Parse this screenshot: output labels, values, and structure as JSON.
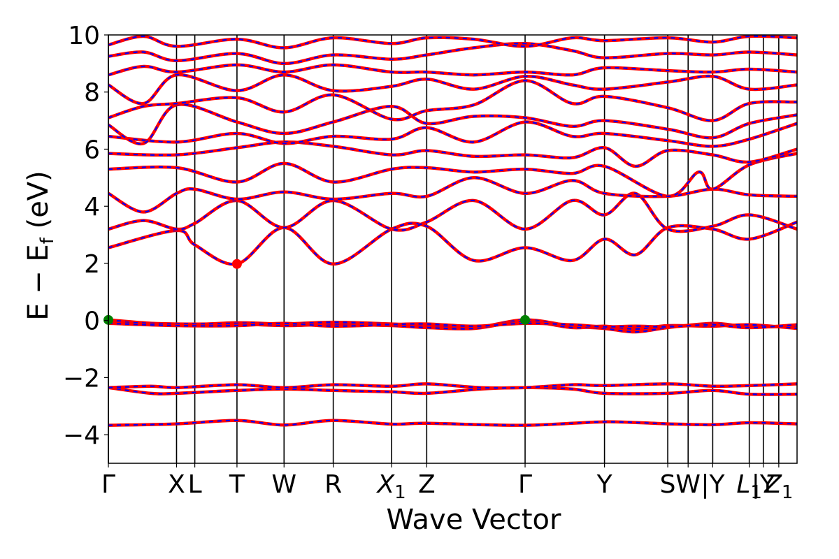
{
  "chart_data": {
    "type": "line",
    "xlabel": "Wave Vector",
    "ylabel_parts": {
      "main": "E − E",
      "sub": "f",
      "unit": " (eV)"
    },
    "ylim": [
      -5,
      10
    ],
    "yticks": [
      {
        "value": 10,
        "label": "10"
      },
      {
        "value": 8,
        "label": "8"
      },
      {
        "value": 6,
        "label": "6"
      },
      {
        "value": 4,
        "label": "4"
      },
      {
        "value": 2,
        "label": "2"
      },
      {
        "value": 0,
        "label": "0"
      },
      {
        "value": -2,
        "label": "−2"
      },
      {
        "value": -4,
        "label": "−4"
      }
    ],
    "xlim": [
      0,
      9.8
    ],
    "kpoints": [
      {
        "label": "Γ",
        "x": 0.0
      },
      {
        "label": "X",
        "x": 0.97
      },
      {
        "label": "L",
        "x": 1.23
      },
      {
        "label": "T",
        "x": 1.83
      },
      {
        "label": "W",
        "x": 2.5
      },
      {
        "label": "R",
        "x": 3.2
      },
      {
        "label": "X",
        "sub": "1",
        "x": 4.03
      },
      {
        "label": "Z",
        "x": 4.53
      },
      {
        "label": "Γ",
        "x": 5.93
      },
      {
        "label": "Y",
        "x": 7.06
      },
      {
        "label": "S",
        "x": 7.96
      },
      {
        "label": "W",
        "x": 8.25
      },
      {
        "label": "|Y",
        "x": 8.6
      },
      {
        "label": "L",
        "sub": "1",
        "x": 9.12
      },
      {
        "label": "|Y",
        "x": 9.32
      },
      {
        "label": "Z",
        "sub": "1",
        "x": 9.54
      }
    ],
    "series_style": {
      "primary_color": "#ff0000",
      "overlay_color": "#0000ff",
      "overlay_dash": "dashed"
    },
    "markers": [
      {
        "x": 0.0,
        "y": 0.02,
        "color": "#008000"
      },
      {
        "x": 5.93,
        "y": 0.02,
        "color": "#008000"
      },
      {
        "x": 1.83,
        "y": 1.98,
        "color": "#ff0000"
      }
    ],
    "bands": [
      {
        "x": [
          0,
          0.97,
          1.83,
          2.5,
          3.2,
          4.03,
          4.53,
          5.93,
          7.06,
          7.96,
          8.6,
          9.12,
          9.8
        ],
        "y": [
          -3.67,
          -3.62,
          -3.5,
          -3.66,
          -3.5,
          -3.63,
          -3.6,
          -3.67,
          -3.55,
          -3.62,
          -3.65,
          -3.58,
          -3.62
        ]
      },
      {
        "x": [
          0,
          0.6,
          0.97,
          1.83,
          2.5,
          3.2,
          4.03,
          4.53,
          5.3,
          5.93,
          6.6,
          7.06,
          7.96,
          8.6,
          9.12,
          9.8
        ],
        "y": [
          -2.35,
          -2.55,
          -2.55,
          -2.45,
          -2.4,
          -2.45,
          -2.5,
          -2.55,
          -2.4,
          -2.35,
          -2.4,
          -2.55,
          -2.55,
          -2.45,
          -2.58,
          -2.58
        ]
      },
      {
        "x": [
          0,
          0.6,
          0.97,
          1.83,
          2.5,
          3.2,
          4.03,
          4.53,
          5.3,
          5.93,
          6.6,
          7.06,
          7.96,
          8.6,
          9.12,
          9.8
        ],
        "y": [
          -2.35,
          -2.3,
          -2.35,
          -2.25,
          -2.35,
          -2.25,
          -2.3,
          -2.22,
          -2.35,
          -2.35,
          -2.25,
          -2.28,
          -2.22,
          -2.3,
          -2.28,
          -2.22
        ]
      },
      {
        "x": [
          0,
          0.97,
          1.83,
          2.5,
          3.2,
          4.03,
          4.53,
          5.2,
          5.93,
          6.6,
          7.06,
          7.5,
          7.96,
          8.6,
          9.12,
          9.8
        ],
        "y": [
          0.02,
          -0.15,
          -0.08,
          -0.12,
          -0.06,
          -0.12,
          -0.18,
          -0.25,
          0.02,
          -0.2,
          -0.28,
          -0.4,
          -0.25,
          -0.1,
          -0.22,
          -0.2
        ]
      },
      {
        "x": [
          0,
          0.97,
          1.83,
          2.5,
          3.2,
          4.03,
          4.53,
          5.2,
          5.93,
          6.6,
          7.06,
          7.5,
          7.96,
          8.6,
          9.12,
          9.8
        ],
        "y": [
          -0.05,
          -0.12,
          -0.12,
          -0.18,
          -0.14,
          -0.18,
          -0.25,
          -0.28,
          -0.03,
          -0.25,
          -0.2,
          -0.3,
          -0.18,
          -0.2,
          -0.15,
          -0.28
        ]
      },
      {
        "x": [
          0,
          0.97,
          1.83,
          2.5,
          3.2,
          4.03,
          4.53,
          5.2,
          5.93,
          6.6,
          7.06,
          7.5,
          7.96,
          8.6,
          9.12,
          9.8
        ],
        "y": [
          -0.1,
          -0.18,
          -0.18,
          -0.1,
          -0.2,
          -0.14,
          -0.12,
          -0.2,
          -0.1,
          -0.15,
          -0.22,
          -0.2,
          -0.22,
          -0.15,
          -0.25,
          -0.15
        ]
      },
      {
        "x": [
          0,
          0.97,
          1.23,
          1.83,
          2.5,
          3.2,
          4.03,
          4.53,
          5.2,
          5.93,
          6.6,
          7.06,
          7.5,
          7.96,
          8.6,
          9.12,
          9.8
        ],
        "y": [
          2.55,
          3.15,
          2.65,
          1.98,
          3.25,
          1.98,
          3.2,
          3.3,
          2.1,
          2.55,
          2.1,
          2.85,
          2.3,
          3.25,
          3.2,
          2.85,
          3.45
        ]
      },
      {
        "x": [
          0,
          0.5,
          0.97,
          1.23,
          1.83,
          2.5,
          3.2,
          4.03,
          4.53,
          5.2,
          5.93,
          6.6,
          7.06,
          7.5,
          7.96,
          8.6,
          9.12,
          9.8
        ],
        "y": [
          3.2,
          3.5,
          3.2,
          3.4,
          4.2,
          3.25,
          4.2,
          3.2,
          3.45,
          4.2,
          3.2,
          4.2,
          3.7,
          4.45,
          3.2,
          3.3,
          3.7,
          3.2
        ]
      },
      {
        "x": [
          0,
          0.5,
          0.97,
          1.23,
          1.83,
          2.5,
          3.2,
          4.03,
          4.53,
          5.2,
          5.93,
          6.6,
          7.06,
          7.96,
          8.6,
          9.12,
          9.8
        ],
        "y": [
          4.45,
          3.8,
          4.45,
          4.6,
          4.25,
          4.5,
          4.25,
          4.45,
          4.35,
          5.0,
          4.45,
          4.9,
          4.45,
          4.35,
          4.6,
          4.4,
          4.35
        ]
      },
      {
        "x": [
          0,
          0.97,
          1.83,
          2.5,
          3.2,
          4.03,
          4.53,
          5.2,
          5.93,
          6.6,
          7.06,
          7.96,
          8.4,
          8.6,
          9.12,
          9.8
        ],
        "y": [
          5.3,
          5.35,
          4.85,
          5.5,
          4.85,
          5.3,
          5.35,
          5.2,
          5.3,
          5.15,
          5.4,
          4.35,
          5.2,
          4.6,
          5.45,
          5.85
        ]
      },
      {
        "x": [
          0,
          0.97,
          1.83,
          2.5,
          3.2,
          4.03,
          4.53,
          5.2,
          5.93,
          6.6,
          7.06,
          7.5,
          7.96,
          8.6,
          9.12,
          9.8
        ],
        "y": [
          5.85,
          5.8,
          6.05,
          6.25,
          6.1,
          5.8,
          5.95,
          5.75,
          5.8,
          5.7,
          6.05,
          5.4,
          5.95,
          5.8,
          5.55,
          6.0
        ]
      },
      {
        "x": [
          0,
          0.97,
          1.83,
          2.5,
          3.2,
          4.03,
          4.53,
          5.2,
          5.93,
          6.6,
          7.06,
          7.96,
          8.6,
          9.12,
          9.8
        ],
        "y": [
          6.45,
          6.25,
          6.55,
          6.2,
          6.45,
          6.35,
          6.75,
          6.25,
          6.95,
          6.45,
          6.55,
          6.3,
          6.1,
          6.35,
          6.9
        ]
      },
      {
        "x": [
          0,
          0.5,
          0.97,
          1.83,
          2.5,
          3.2,
          4.03,
          4.53,
          5.2,
          5.93,
          6.6,
          7.06,
          7.96,
          8.6,
          9.12,
          9.8
        ],
        "y": [
          6.85,
          6.2,
          7.55,
          6.95,
          6.55,
          6.95,
          7.5,
          6.9,
          7.15,
          7.1,
          6.8,
          7.0,
          6.7,
          6.4,
          6.9,
          7.2
        ]
      },
      {
        "x": [
          0,
          0.5,
          0.97,
          1.83,
          2.5,
          3.2,
          4.03,
          4.53,
          5.2,
          5.93,
          6.6,
          7.06,
          7.96,
          8.6,
          9.12,
          9.8
        ],
        "y": [
          7.1,
          7.5,
          7.6,
          7.8,
          7.3,
          7.9,
          7.05,
          7.35,
          7.55,
          8.4,
          7.6,
          7.85,
          7.45,
          7.0,
          7.6,
          7.65
        ]
      },
      {
        "x": [
          0,
          0.5,
          0.97,
          1.83,
          2.5,
          3.2,
          4.03,
          4.53,
          5.2,
          5.93,
          6.6,
          7.06,
          7.96,
          8.6,
          9.12,
          9.8
        ],
        "y": [
          8.25,
          7.6,
          8.6,
          8.05,
          8.6,
          8.05,
          8.2,
          8.45,
          8.1,
          8.55,
          8.25,
          8.1,
          8.35,
          8.55,
          8.1,
          8.25
        ]
      },
      {
        "x": [
          0,
          0.5,
          0.97,
          1.83,
          2.5,
          3.2,
          4.03,
          4.53,
          5.2,
          5.93,
          6.6,
          7.06,
          7.96,
          8.6,
          9.12,
          9.8
        ],
        "y": [
          8.6,
          8.9,
          8.7,
          8.95,
          8.7,
          8.95,
          8.7,
          8.7,
          8.6,
          8.7,
          8.6,
          8.85,
          8.75,
          8.7,
          8.8,
          8.7
        ]
      },
      {
        "x": [
          0,
          0.5,
          0.97,
          1.83,
          2.5,
          3.2,
          4.03,
          4.53,
          5.2,
          5.93,
          6.6,
          7.06,
          7.96,
          8.6,
          9.12,
          9.8
        ],
        "y": [
          9.25,
          9.4,
          9.1,
          9.35,
          9.0,
          9.3,
          9.15,
          9.3,
          9.55,
          9.7,
          9.45,
          9.2,
          9.35,
          9.3,
          9.4,
          9.3
        ]
      },
      {
        "x": [
          0,
          0.5,
          0.97,
          1.83,
          2.5,
          3.2,
          4.03,
          4.53,
          5.2,
          5.93,
          6.6,
          7.06,
          7.96,
          8.6,
          9.12,
          9.8
        ],
        "y": [
          9.65,
          9.95,
          9.6,
          9.85,
          9.55,
          9.9,
          9.7,
          9.9,
          9.85,
          9.6,
          9.9,
          9.8,
          9.9,
          9.75,
          9.95,
          9.9
        ]
      }
    ]
  }
}
